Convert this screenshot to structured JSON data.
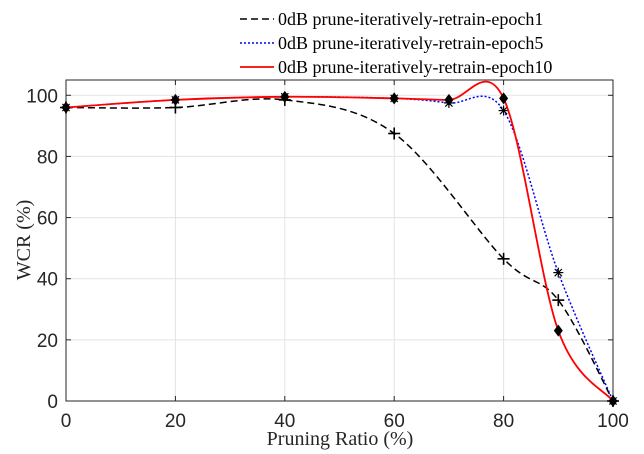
{
  "chart_data": {
    "type": "line",
    "xlabel": "Pruning Ratio (%)",
    "ylabel": "WCR (%)",
    "xlim": [
      0,
      100
    ],
    "ylim": [
      0,
      105
    ],
    "x_ticks": [
      0,
      20,
      40,
      60,
      80,
      100
    ],
    "y_ticks": [
      0,
      20,
      40,
      60,
      80,
      100
    ],
    "x_tick_labels": [
      "0",
      "20",
      "40",
      "60",
      "80",
      "100"
    ],
    "y_tick_labels": [
      "0",
      "20",
      "40",
      "60",
      "80",
      "100"
    ],
    "grid": true,
    "legend_position": "top-right, above plot",
    "series": [
      {
        "name": "0dB prune-iteratively-retrain-epoch1",
        "color": "#000000",
        "line_style": "dashed",
        "marker": "plus",
        "x": [
          0,
          20,
          40,
          60,
          80,
          90,
          100
        ],
        "y": [
          96,
          96,
          98.5,
          87.5,
          46.5,
          33,
          0
        ]
      },
      {
        "name": "0dB prune-iteratively-retrain-epoch5",
        "color": "#0000ff",
        "line_style": "dotted",
        "marker": "asterisk",
        "x": [
          0,
          20,
          40,
          60,
          70,
          80,
          90,
          100
        ],
        "y": [
          96,
          98.5,
          99.5,
          99,
          97.5,
          95,
          42,
          0
        ]
      },
      {
        "name": "0dB prune-iteratively-retrain-epoch10",
        "color": "#ff0000",
        "line_style": "solid",
        "marker": "diamond",
        "x": [
          0,
          20,
          40,
          60,
          70,
          80,
          90,
          100
        ],
        "y": [
          96,
          98.5,
          99.5,
          99,
          98.5,
          99,
          23,
          0
        ]
      }
    ]
  }
}
